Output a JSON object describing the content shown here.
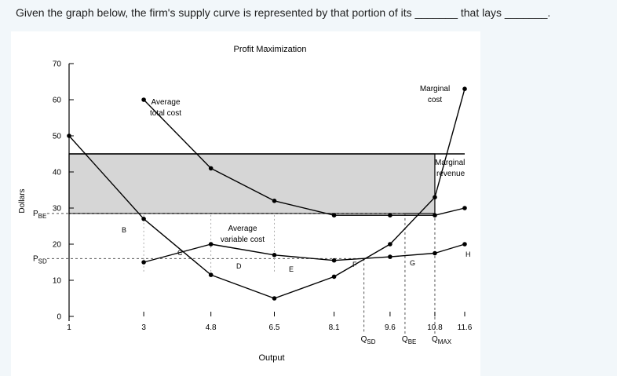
{
  "question": {
    "text": "Given the graph below, the firm's supply curve is represented by that portion of its _______ that lays _______."
  },
  "chart_data": {
    "type": "line",
    "title": "Profit Maximization",
    "xlabel": "Output",
    "ylabel": "Dollars",
    "ylim": [
      0,
      70
    ],
    "y_ticks": [
      0,
      10,
      20,
      30,
      40,
      50,
      60,
      70
    ],
    "x_ticks": [
      "1",
      "3",
      "4.8",
      "6.5",
      "8.1",
      "9.6",
      "10.8",
      "11.6"
    ],
    "x_positions": [
      1,
      3,
      4.8,
      6.5,
      8.1,
      9.6,
      10.8,
      11.6
    ],
    "series": [
      {
        "name": "Marginal cost",
        "points": [
          [
            1,
            50
          ],
          [
            3,
            27
          ],
          [
            4.8,
            11.5
          ],
          [
            6.5,
            5
          ],
          [
            8.1,
            11
          ],
          [
            9.6,
            20
          ],
          [
            10.8,
            33
          ],
          [
            11.6,
            63
          ]
        ]
      },
      {
        "name": "Average total cost",
        "points": [
          [
            3,
            60
          ],
          [
            4.8,
            41
          ],
          [
            6.5,
            32
          ],
          [
            8.1,
            28
          ],
          [
            9.6,
            28
          ],
          [
            10.8,
            28
          ],
          [
            11.6,
            30
          ]
        ]
      },
      {
        "name": "Average variable cost",
        "points": [
          [
            3,
            15
          ],
          [
            4.8,
            20
          ],
          [
            6.5,
            17
          ],
          [
            8.1,
            15.5
          ],
          [
            9.6,
            16.5
          ],
          [
            10.8,
            17.5
          ],
          [
            11.6,
            20
          ]
        ]
      },
      {
        "name": "Marginal revenue",
        "points": [
          [
            1,
            45
          ],
          [
            11.6,
            45
          ]
        ]
      }
    ],
    "shaded_region": {
      "y_from": 28.5,
      "y_to": 45,
      "x_from": 1,
      "x_to": 10.8
    },
    "reference_lines": {
      "P_BE": 28.5,
      "P_SD": 16,
      "Q_SD": 8.9,
      "Q_BE": 10.0,
      "Q_MAX": 10.8
    },
    "annotations": {
      "marginal_cost": [
        "Marginal",
        "cost"
      ],
      "average_total_cost": [
        "Average",
        "total cost"
      ],
      "average_variable_cost": [
        "Average",
        "variable cost"
      ],
      "marginal_revenue": [
        "Marginal",
        "revenue"
      ],
      "point_labels": [
        "B",
        "C",
        "D",
        "E",
        "F",
        "G",
        "H"
      ],
      "p_be": {
        "main": "P",
        "sub": "BE"
      },
      "p_sd": {
        "main": "P",
        "sub": "SD"
      },
      "q_sd": {
        "main": "Q",
        "sub": "SD"
      },
      "q_be": {
        "main": "Q",
        "sub": "BE"
      },
      "q_max": {
        "main": "Q",
        "sub": "MAX"
      }
    }
  }
}
